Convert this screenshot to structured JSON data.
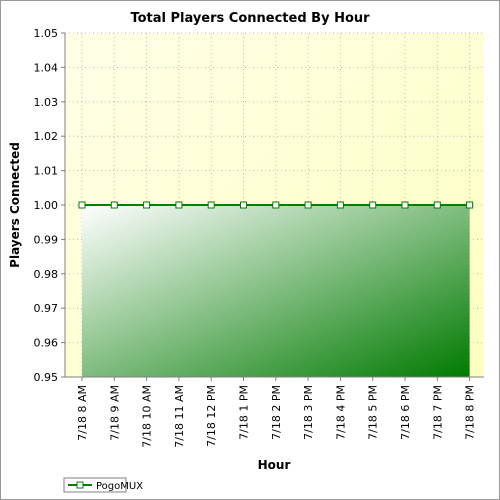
{
  "chart_data": {
    "type": "area",
    "title": "Total Players Connected By Hour",
    "xlabel": "Hour",
    "ylabel": "Players Connected",
    "categories": [
      "7/18 8 AM",
      "7/18 9 AM",
      "7/18 10 AM",
      "7/18 11 AM",
      "7/18 12 PM",
      "7/18 1 PM",
      "7/18 2 PM",
      "7/18 3 PM",
      "7/18 4 PM",
      "7/18 5 PM",
      "7/18 6 PM",
      "7/18 7 PM",
      "7/18 8 PM"
    ],
    "yticks": [
      "0.95",
      "0.96",
      "0.97",
      "0.98",
      "0.99",
      "1.00",
      "1.01",
      "1.02",
      "1.03",
      "1.04",
      "1.05"
    ],
    "ylim": [
      0.95,
      1.05
    ],
    "grid": true,
    "legend_position": "bottom-left",
    "series": [
      {
        "name": "PogoMUX",
        "values": [
          1,
          1,
          1,
          1,
          1,
          1,
          1,
          1,
          1,
          1,
          1,
          1,
          1
        ],
        "color": "#008000"
      }
    ],
    "colors": {
      "plot_background_start": "#ffffe8",
      "plot_background_end": "#ffffc0",
      "fill_light": "#ffffff",
      "fill_dark": "#007a00",
      "line": "#008000",
      "grid": "#b8b8b8"
    }
  }
}
